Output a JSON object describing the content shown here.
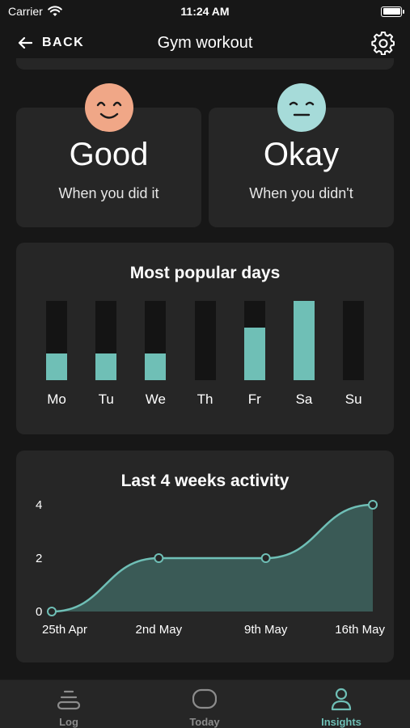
{
  "status_bar": {
    "carrier": "Carrier",
    "time": "11:24 AM"
  },
  "nav": {
    "back_label": "BACK",
    "title": "Gym workout",
    "settings_icon": "gear-icon"
  },
  "moods": [
    {
      "value": "Good",
      "caption": "When you did it",
      "face": "smiling-face-icon",
      "color": "#f0a787"
    },
    {
      "value": "Okay",
      "caption": "When you didn't",
      "face": "neutral-face-icon",
      "color": "#a6dbd9"
    }
  ],
  "popular_days": {
    "title": "Most popular days",
    "accent": "#6fbfb6"
  },
  "activity": {
    "title": "Last 4 weeks activity",
    "accent": "#6fbfb6"
  },
  "chart_data": [
    {
      "type": "bar",
      "title": "Most popular days",
      "categories": [
        "Mo",
        "Tu",
        "We",
        "Th",
        "Fr",
        "Sa",
        "Su"
      ],
      "values": [
        1,
        1,
        1,
        0,
        2,
        3,
        0
      ],
      "ylim": [
        0,
        3
      ],
      "grid": false
    },
    {
      "type": "area",
      "title": "Last 4 weeks activity",
      "x": [
        "25th Apr",
        "2nd May",
        "9th May",
        "16th May"
      ],
      "values": [
        0,
        2,
        2,
        4
      ],
      "ylim": [
        0,
        4
      ],
      "yticks": [
        0,
        2,
        4
      ],
      "grid": false
    }
  ],
  "tabs": [
    {
      "label": "Log",
      "icon": "log-icon",
      "active": false
    },
    {
      "label": "Today",
      "icon": "today-icon",
      "active": false
    },
    {
      "label": "Insights",
      "icon": "insights-icon",
      "active": true
    }
  ]
}
